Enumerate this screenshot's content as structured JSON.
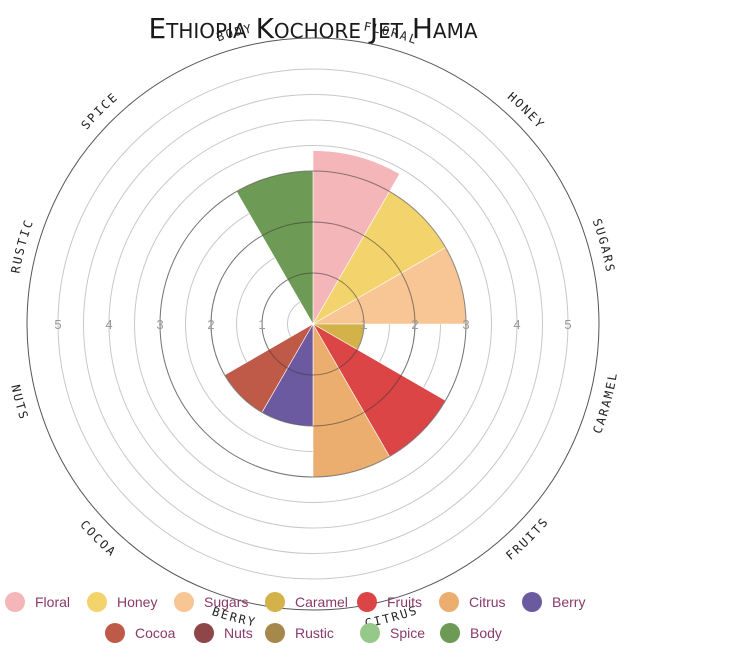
{
  "chart_data": {
    "type": "polar-area",
    "title": "Ethiopia Kochore Jet Hama",
    "rlim": [
      0,
      5
    ],
    "r_ticks": [
      "1",
      "2",
      "3",
      "4",
      "5"
    ],
    "categories": [
      "Floral",
      "Honey",
      "Sugars",
      "Caramel",
      "Fruits",
      "Citrus",
      "Berry",
      "Cocoa",
      "Nuts",
      "Rustic",
      "Spice",
      "Body"
    ],
    "axis_labels": [
      "FLORAL",
      "HONEY",
      "SUGARS",
      "CARAMEL",
      "FRUITS",
      "CITRUS",
      "BERRY",
      "COCOA",
      "NUTS",
      "RUSTIC",
      "SPICE",
      "BODY"
    ],
    "values": [
      3.4,
      3.0,
      3.0,
      1.0,
      3.0,
      3.0,
      2.0,
      2.0,
      0,
      0,
      0,
      3.0
    ],
    "colors": [
      "#f4b6b9",
      "#f3d36b",
      "#f7c694",
      "#d4b24a",
      "#db4545",
      "#ebae6f",
      "#6b5aa0",
      "#c05a48",
      "#8f4649",
      "#a6894a",
      "#96c88a",
      "#6d9a55"
    ],
    "legend": {
      "position": "bottom",
      "rows": [
        [
          "Floral",
          "Honey",
          "Sugars",
          "Caramel",
          "Fruits",
          "Citrus",
          "Berry"
        ],
        [
          "Cocoa",
          "Nuts",
          "Rustic",
          "Spice",
          "Body"
        ]
      ]
    },
    "grid": true
  }
}
